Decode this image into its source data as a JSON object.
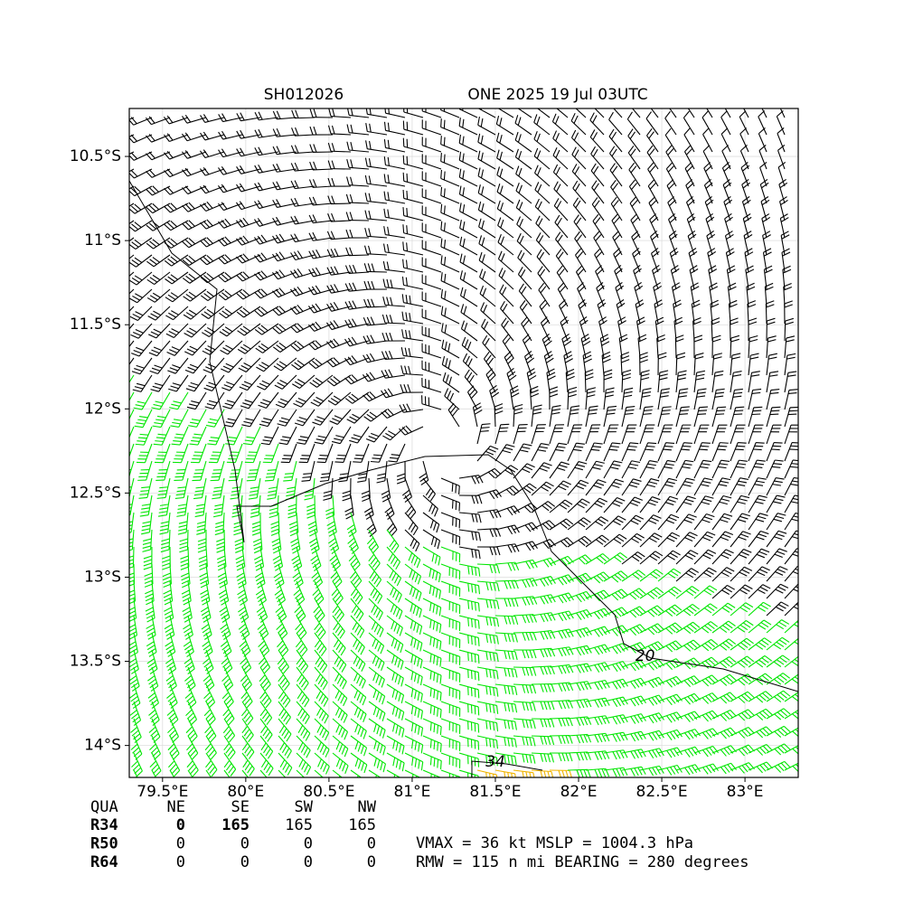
{
  "chart_data": {
    "type": "barb",
    "title_left": "SH012026",
    "title_right": "ONE 2025 19 Jul 03UTC",
    "xlim": [
      79.3,
      83.32
    ],
    "ylim": [
      -14.19,
      -10.215
    ],
    "xticks": [
      {
        "value": 79.5,
        "label": "79.5°E"
      },
      {
        "value": 80,
        "label": "80°E"
      },
      {
        "value": 80.5,
        "label": "80.5°E"
      },
      {
        "value": 81,
        "label": "81°E"
      },
      {
        "value": 81.5,
        "label": "81.5°E"
      },
      {
        "value": 82,
        "label": "82°E"
      },
      {
        "value": 82.5,
        "label": "82.5°E"
      },
      {
        "value": 83,
        "label": "83°E"
      }
    ],
    "yticks": [
      {
        "value": -10.5,
        "label": "10.5°S"
      },
      {
        "value": -11,
        "label": "11°S"
      },
      {
        "value": -11.5,
        "label": "11.5°S"
      },
      {
        "value": -12,
        "label": "12°S"
      },
      {
        "value": -12.5,
        "label": "12.5°S"
      },
      {
        "value": -13,
        "label": "13°S"
      },
      {
        "value": -13.5,
        "label": "13.5°S"
      },
      {
        "value": -14,
        "label": "14°S"
      }
    ],
    "grid": true,
    "contours": [
      {
        "label": "20",
        "x": 82.4,
        "y": -13.47
      },
      {
        "label": "34",
        "x": 81.5,
        "y": -14.1
      }
    ]
  },
  "summary": {
    "header": [
      "QUA",
      "NE",
      "SE",
      "SW",
      "NW"
    ],
    "rows": [
      [
        "R34",
        0,
        165,
        165,
        165
      ],
      [
        "R50",
        0,
        0,
        0,
        0
      ],
      [
        "R64",
        0,
        0,
        0,
        0
      ]
    ],
    "line1": "VMAX =  36 kt MSLP = 1004.3 hPa",
    "line2": "RMW = 115 n mi BEARING = 280 degrees"
  }
}
